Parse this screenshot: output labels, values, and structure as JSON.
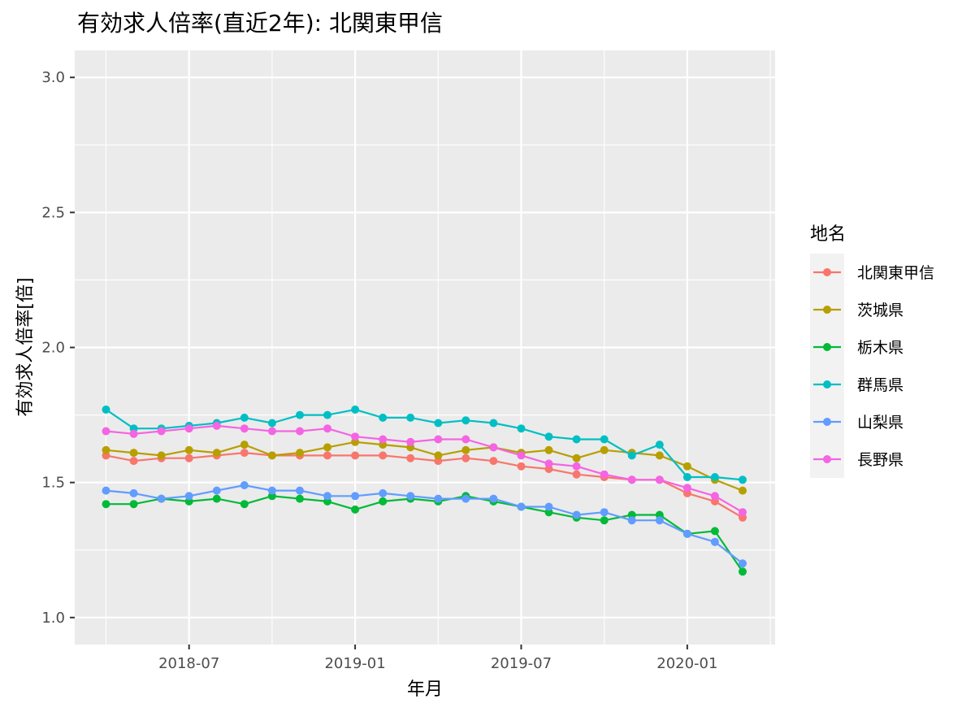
{
  "chart_data": {
    "type": "line",
    "title": "有効求人倍率(直近2年): 北関東甲信",
    "xlabel": "年月",
    "ylabel": "有効求人倍率[倍]",
    "ylim": [
      0.9,
      3.1
    ],
    "y_ticks": [
      "1.0",
      "1.5",
      "2.0",
      "2.5",
      "3.0"
    ],
    "x_ticks": [
      "2018-07",
      "2019-01",
      "2019-07",
      "2020-01"
    ],
    "x": [
      "2018-04",
      "2018-05",
      "2018-06",
      "2018-07",
      "2018-08",
      "2018-09",
      "2018-10",
      "2018-11",
      "2018-12",
      "2019-01",
      "2019-02",
      "2019-03",
      "2019-04",
      "2019-05",
      "2019-06",
      "2019-07",
      "2019-08",
      "2019-09",
      "2019-10",
      "2019-11",
      "2019-12",
      "2020-01",
      "2020-02",
      "2020-03"
    ],
    "legend_title": "地名",
    "legend_position": "right",
    "panel_background": "#ebebeb",
    "series": [
      {
        "name": "北関東甲信",
        "color": "#F8766D",
        "values": [
          1.6,
          1.58,
          1.59,
          1.59,
          1.6,
          1.61,
          1.6,
          1.6,
          1.6,
          1.6,
          1.6,
          1.59,
          1.58,
          1.59,
          1.58,
          1.56,
          1.55,
          1.53,
          1.52,
          1.51,
          1.51,
          1.46,
          1.43,
          1.37
        ]
      },
      {
        "name": "茨城県",
        "color": "#B79F00",
        "values": [
          1.62,
          1.61,
          1.6,
          1.62,
          1.61,
          1.64,
          1.6,
          1.61,
          1.63,
          1.65,
          1.64,
          1.63,
          1.6,
          1.62,
          1.63,
          1.61,
          1.62,
          1.59,
          1.62,
          1.61,
          1.6,
          1.56,
          1.51,
          1.47
        ]
      },
      {
        "name": "栃木県",
        "color": "#00BA38",
        "values": [
          1.42,
          1.42,
          1.44,
          1.43,
          1.44,
          1.42,
          1.45,
          1.44,
          1.43,
          1.4,
          1.43,
          1.44,
          1.43,
          1.45,
          1.43,
          1.41,
          1.39,
          1.37,
          1.36,
          1.38,
          1.38,
          1.31,
          1.32,
          1.17
        ]
      },
      {
        "name": "群馬県",
        "color": "#00BFC4",
        "values": [
          1.77,
          1.7,
          1.7,
          1.71,
          1.72,
          1.74,
          1.72,
          1.75,
          1.75,
          1.77,
          1.74,
          1.74,
          1.72,
          1.73,
          1.72,
          1.7,
          1.67,
          1.66,
          1.66,
          1.6,
          1.64,
          1.52,
          1.52,
          1.51
        ]
      },
      {
        "name": "山梨県",
        "color": "#619CFF",
        "values": [
          1.47,
          1.46,
          1.44,
          1.45,
          1.47,
          1.49,
          1.47,
          1.47,
          1.45,
          1.45,
          1.46,
          1.45,
          1.44,
          1.44,
          1.44,
          1.41,
          1.41,
          1.38,
          1.39,
          1.36,
          1.36,
          1.31,
          1.28,
          1.2
        ]
      },
      {
        "name": "長野県",
        "color": "#F564E3",
        "values": [
          1.69,
          1.68,
          1.69,
          1.7,
          1.71,
          1.7,
          1.69,
          1.69,
          1.7,
          1.67,
          1.66,
          1.65,
          1.66,
          1.66,
          1.63,
          1.6,
          1.57,
          1.56,
          1.53,
          1.51,
          1.51,
          1.48,
          1.45,
          1.39
        ]
      }
    ]
  }
}
